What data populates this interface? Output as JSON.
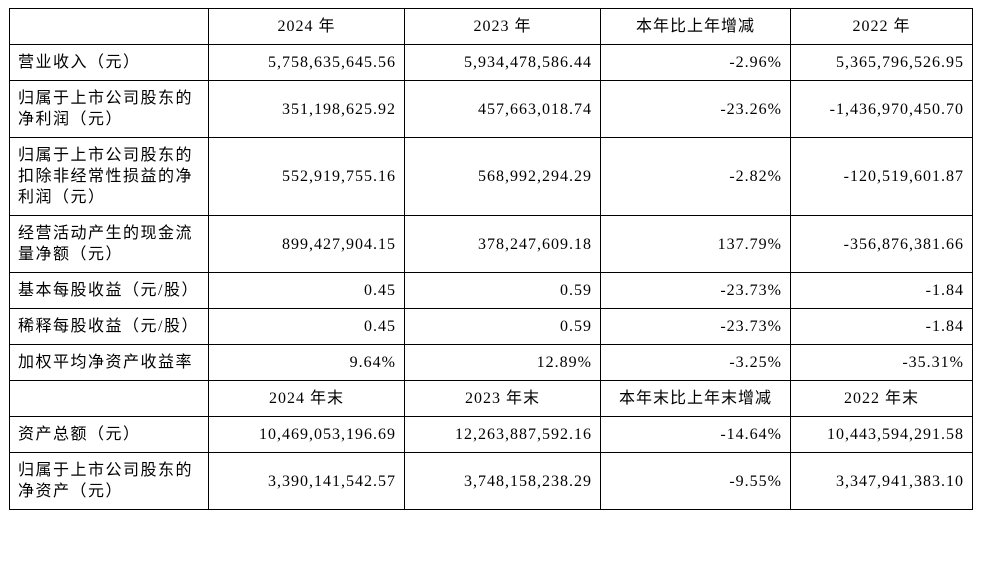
{
  "colors": {
    "background": "#ffffff",
    "border": "#000000",
    "text": "#000000"
  },
  "table": {
    "section1": {
      "header": [
        "",
        "2024 年",
        "2023 年",
        "本年比上年增减",
        "2022 年"
      ],
      "rows": [
        {
          "label": "营业收入（元）",
          "v1": "5,758,635,645.56",
          "v2": "5,934,478,586.44",
          "v3": "-2.96%",
          "v4": "5,365,796,526.95"
        },
        {
          "label": "归属于上市公司股东的净利润（元）",
          "v1": "351,198,625.92",
          "v2": "457,663,018.74",
          "v3": "-23.26%",
          "v4": "-1,436,970,450.70"
        },
        {
          "label": "归属于上市公司股东的扣除非经常性损益的净利润（元）",
          "v1": "552,919,755.16",
          "v2": "568,992,294.29",
          "v3": "-2.82%",
          "v4": "-120,519,601.87"
        },
        {
          "label": "经营活动产生的现金流量净额（元）",
          "v1": "899,427,904.15",
          "v2": "378,247,609.18",
          "v3": "137.79%",
          "v4": "-356,876,381.66"
        },
        {
          "label": "基本每股收益（元/股）",
          "v1": "0.45",
          "v2": "0.59",
          "v3": "-23.73%",
          "v4": "-1.84"
        },
        {
          "label": "稀释每股收益（元/股）",
          "v1": "0.45",
          "v2": "0.59",
          "v3": "-23.73%",
          "v4": "-1.84"
        },
        {
          "label": "加权平均净资产收益率",
          "v1": "9.64%",
          "v2": "12.89%",
          "v3": "-3.25%",
          "v4": "-35.31%"
        }
      ]
    },
    "section2": {
      "header": [
        "",
        "2024 年末",
        "2023 年末",
        "本年末比上年末增减",
        "2022 年末"
      ],
      "rows": [
        {
          "label": "资产总额（元）",
          "v1": "10,469,053,196.69",
          "v2": "12,263,887,592.16",
          "v3": "-14.64%",
          "v4": "10,443,594,291.58"
        },
        {
          "label": "归属于上市公司股东的净资产（元）",
          "v1": "3,390,141,542.57",
          "v2": "3,748,158,238.29",
          "v3": "-9.55%",
          "v4": "3,347,941,383.10"
        }
      ]
    }
  }
}
